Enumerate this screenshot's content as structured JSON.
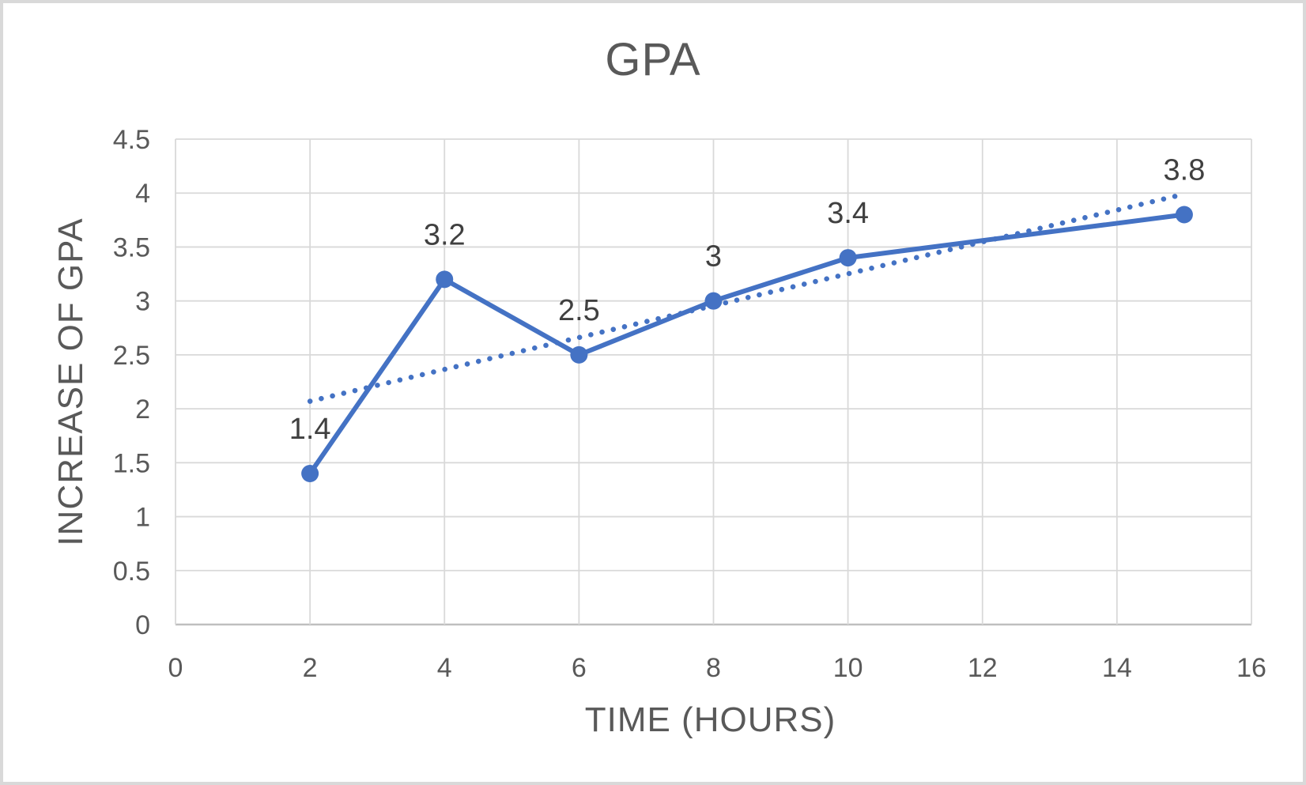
{
  "frame": {
    "background_color": "#FFFFFF",
    "border_color": "#D9D9D9"
  },
  "chart_data": {
    "type": "line",
    "title": "GPA",
    "xlabel": "TIME (HOURS)",
    "ylabel": "INCREASE OF GPA",
    "x": [
      2,
      4,
      6,
      8,
      10,
      15
    ],
    "y": [
      1.4,
      3.2,
      2.5,
      3,
      3.4,
      3.8
    ],
    "point_labels": [
      "1.4",
      "3.2",
      "2.5",
      "3",
      "3.4",
      "3.8"
    ],
    "xlim": [
      0,
      16
    ],
    "ylim": [
      0,
      4.5
    ],
    "x_ticks": [
      0,
      2,
      4,
      6,
      8,
      10,
      12,
      14,
      16
    ],
    "x_tick_labels": [
      "0",
      "2",
      "4",
      "6",
      "8",
      "10",
      "12",
      "14",
      "16"
    ],
    "y_ticks": [
      0,
      0.5,
      1,
      1.5,
      2,
      2.5,
      3,
      3.5,
      4,
      4.5
    ],
    "y_tick_labels": [
      "0",
      "0.5",
      "1",
      "1.5",
      "2",
      "2.5",
      "3",
      "3.5",
      "4",
      "4.5"
    ],
    "grid": true,
    "legend": "none",
    "series_color": "#4472C4",
    "marker_style": "circle",
    "gridline_color": "#D9D9D9",
    "axis_line_color": "#BFBFBF",
    "tick_label_color": "#595959",
    "title_color": "#595959",
    "data_label_color": "#404040",
    "trendline": {
      "type": "linear",
      "style": "dotted",
      "color": "#4472C4",
      "x": [
        2,
        15
      ],
      "y": [
        2.07,
        3.99
      ]
    }
  }
}
